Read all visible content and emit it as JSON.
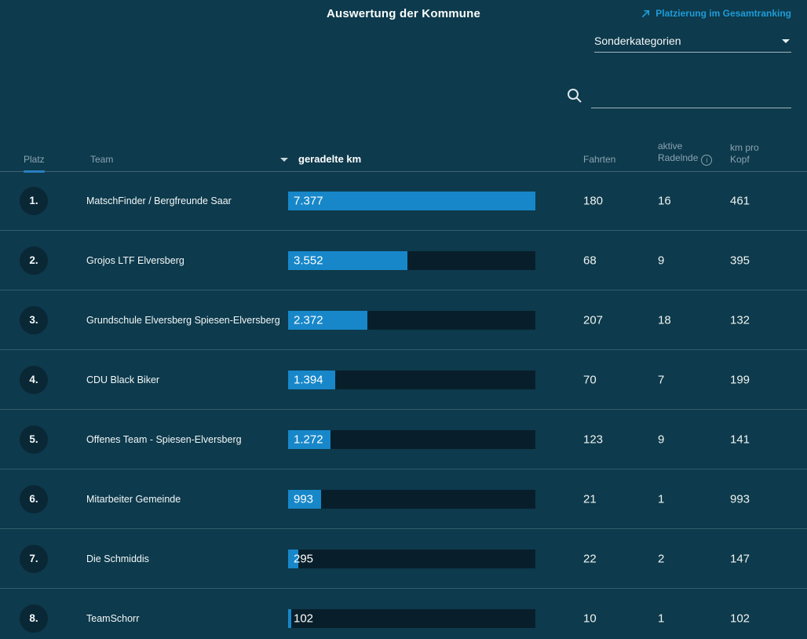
{
  "page": {
    "title": "Auswertung der Kommune",
    "ranking_link": {
      "label": "Platzierung im Gesamtranking"
    },
    "category_dropdown": {
      "value": "Sonderkategorien"
    },
    "search": {
      "value": "",
      "placeholder": ""
    }
  },
  "table": {
    "columns": {
      "platz": "Platz",
      "team": "Team",
      "km": "geradelte km",
      "fahrten": "Fahrten",
      "aktive_line1": "aktive",
      "aktive_line2": "Radelnde",
      "km_pro_kopf_line1": "km pro",
      "km_pro_kopf_line2": "Kopf"
    },
    "max_km": 7377,
    "rows": [
      {
        "rank": "1.",
        "team": "MatschFinder / Bergfreunde Saar",
        "km_display": "7.377",
        "km_value": 7377,
        "fahrten": "180",
        "aktive_radelnde": "16",
        "km_pro_kopf": "461"
      },
      {
        "rank": "2.",
        "team": "Grojos LTF Elversberg",
        "km_display": "3.552",
        "km_value": 3552,
        "fahrten": "68",
        "aktive_radelnde": "9",
        "km_pro_kopf": "395"
      },
      {
        "rank": "3.",
        "team": "Grundschule Elversberg Spiesen-Elversberg",
        "km_display": "2.372",
        "km_value": 2372,
        "fahrten": "207",
        "aktive_radelnde": "18",
        "km_pro_kopf": "132"
      },
      {
        "rank": "4.",
        "team": "CDU Black Biker",
        "km_display": "1.394",
        "km_value": 1394,
        "fahrten": "70",
        "aktive_radelnde": "7",
        "km_pro_kopf": "199"
      },
      {
        "rank": "5.",
        "team": "Offenes Team - Spiesen-Elversberg",
        "km_display": "1.272",
        "km_value": 1272,
        "fahrten": "123",
        "aktive_radelnde": "9",
        "km_pro_kopf": "141"
      },
      {
        "rank": "6.",
        "team": "Mitarbeiter Gemeinde",
        "km_display": "993",
        "km_value": 993,
        "fahrten": "21",
        "aktive_radelnde": "1",
        "km_pro_kopf": "993"
      },
      {
        "rank": "7.",
        "team": "Die Schmiddis",
        "km_display": "295",
        "km_value": 295,
        "fahrten": "22",
        "aktive_radelnde": "2",
        "km_pro_kopf": "147"
      },
      {
        "rank": "8.",
        "team": "TeamSchorr",
        "km_display": "102",
        "km_value": 102,
        "fahrten": "10",
        "aktive_radelnde": "1",
        "km_pro_kopf": "102"
      }
    ]
  },
  "colors": {
    "background": "#0d3a4c",
    "bar_fill": "#1787c9",
    "bar_track": "#081f2b",
    "accent_link": "#1e9cd8",
    "rank_badge": "#0a2735",
    "header_text": "#8ba4b1",
    "active_sort_underline": "#2a7ec0"
  }
}
